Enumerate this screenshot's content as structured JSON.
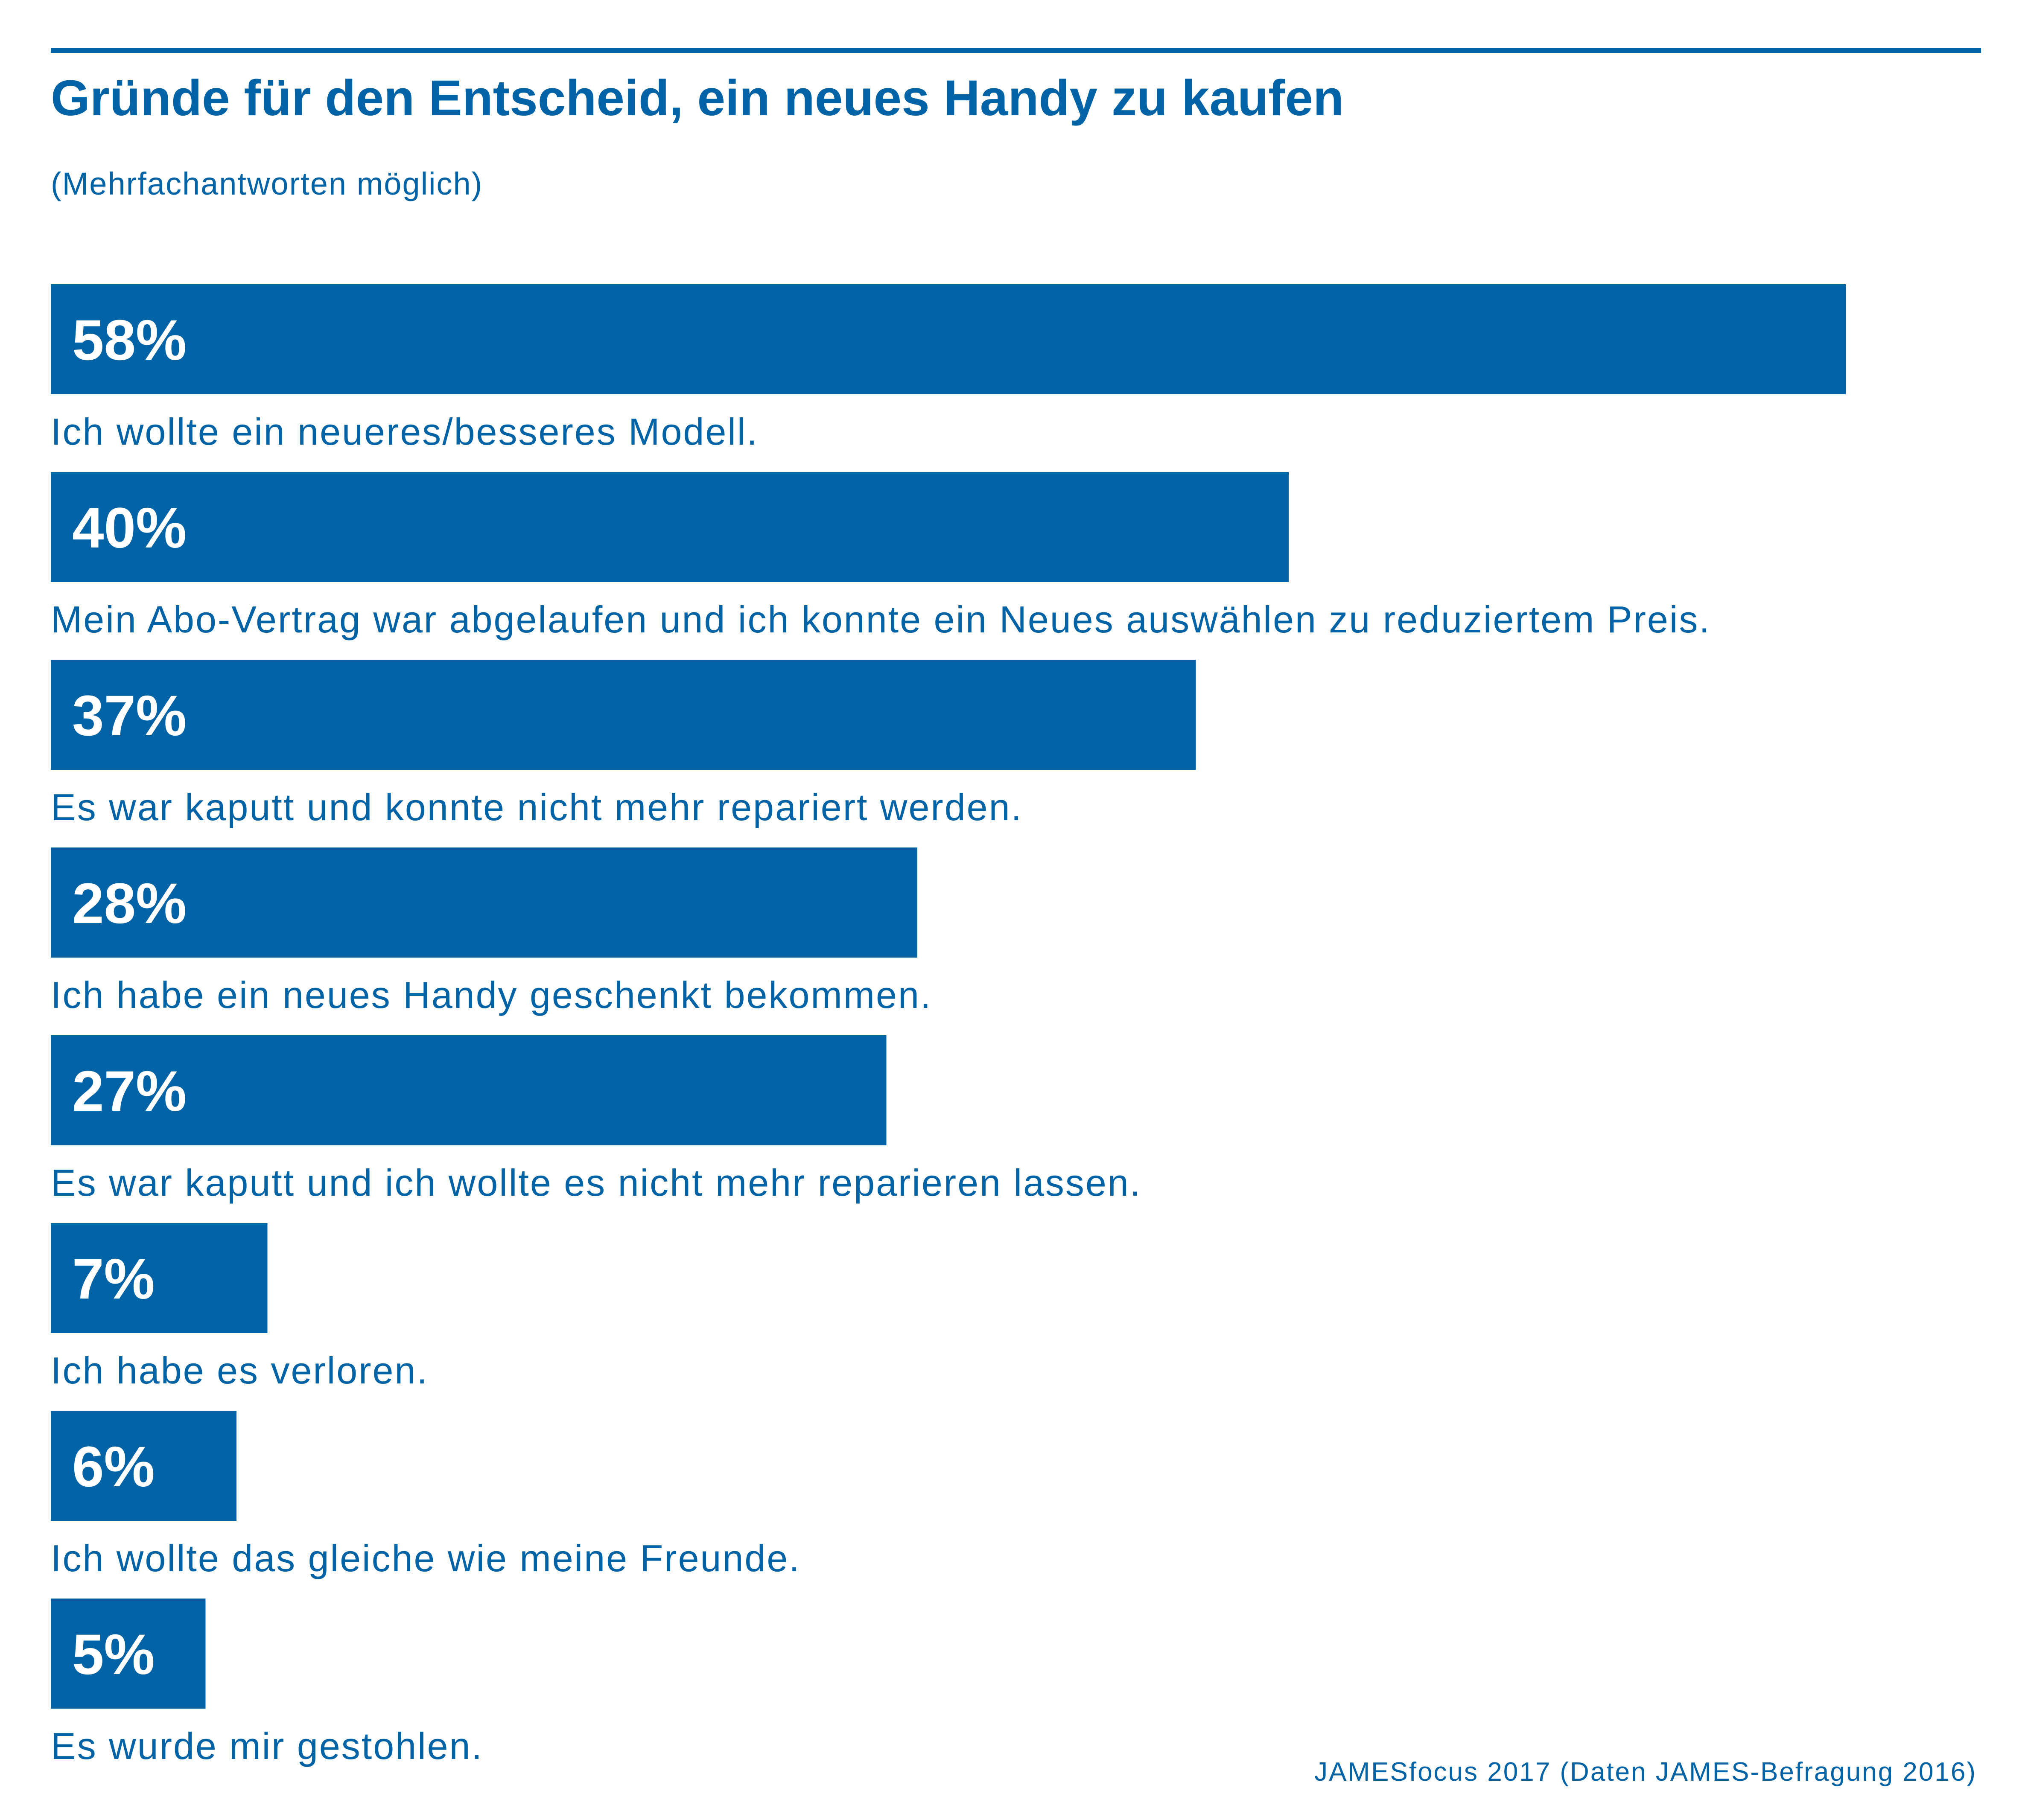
{
  "title": "Gründe für den Entscheid, ein neues Handy zu kaufen",
  "subtitle": "(Mehrfachantworten möglich)",
  "source": "JAMESfocus 2017 (Daten JAMES-Befragung 2016)",
  "colors": {
    "bar": "#0063a6",
    "text": "#0063a6",
    "bar_label": "#ffffff",
    "background": "#ffffff"
  },
  "chart_data": {
    "type": "bar",
    "orientation": "horizontal",
    "title": "Gründe für den Entscheid, ein neues Handy zu kaufen",
    "subtitle": "(Mehrfachantworten möglich)",
    "unit": "%",
    "grid": false,
    "xlim": [
      0,
      58
    ],
    "categories": [
      "Ich wollte ein neueres/besseres Modell.",
      "Mein Abo-Vertrag war abgelaufen und ich konnte ein Neues auswählen zu reduziertem Preis.",
      "Es war kaputt und konnte nicht mehr repariert werden.",
      "Ich habe ein neues Handy geschenkt bekommen.",
      "Es war kaputt und ich wollte es nicht mehr reparieren lassen.",
      "Ich habe es verloren.",
      "Ich wollte das gleiche wie meine Freunde.",
      "Es wurde mir gestohlen."
    ],
    "values": [
      58,
      40,
      37,
      28,
      27,
      7,
      6,
      5
    ],
    "value_labels": [
      "58%",
      "40%",
      "37%",
      "28%",
      "27%",
      "7%",
      "6%",
      "5%"
    ]
  }
}
